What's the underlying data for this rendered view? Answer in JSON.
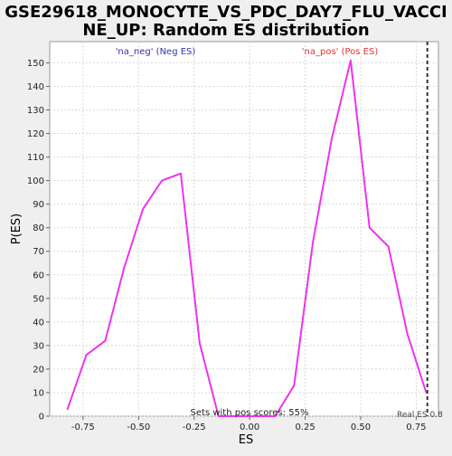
{
  "chart_data": {
    "type": "line",
    "title": "GSE29618_MONOCYTE_VS_PDC_DAY7_FLU_VACCINE_UP: Random ES distribution",
    "title_lines": [
      "GSE29618_MONOCYTE_VS_PDC_DAY7_FLU_VACCI",
      "NE_UP: Random ES distribution"
    ],
    "xlabel": "ES",
    "ylabel": "P(ES)",
    "xlim": [
      -0.9,
      0.85
    ],
    "ylim": [
      0,
      159
    ],
    "x_ticks": [
      -0.75,
      -0.5,
      -0.25,
      0.0,
      0.25,
      0.5,
      0.75
    ],
    "x_tick_labels": [
      "-0.75",
      "-0.50",
      "-0.25",
      "0.00",
      "0.25",
      "0.50",
      "0.75"
    ],
    "y_ticks": [
      0,
      10,
      20,
      30,
      40,
      50,
      60,
      70,
      80,
      90,
      100,
      110,
      120,
      130,
      140,
      150
    ],
    "grid": true,
    "series": [
      {
        "color": "#ee33ee",
        "x": [
          -0.82,
          -0.735,
          -0.65,
          -0.565,
          -0.48,
          -0.395,
          -0.31,
          -0.225,
          -0.14,
          -0.055,
          0.03,
          0.115,
          0.2,
          0.285,
          0.37,
          0.455,
          0.54,
          0.625,
          0.71,
          0.795
        ],
        "values": [
          3,
          26,
          32,
          63,
          88,
          100,
          103,
          31,
          0,
          0,
          0,
          0,
          13,
          74,
          118,
          151,
          80,
          72,
          35,
          10
        ]
      }
    ],
    "annotations": {
      "neg_label": "'na_neg' (Neg ES)",
      "neg_color": "#3333aa",
      "pos_label": "'na_pos' (Pos ES)",
      "pos_color": "#dd3333",
      "pos_scores_text": "Sets with pos scores: 55%",
      "real_es_label": "Real ES 0.8",
      "real_es_value": 0.8
    }
  }
}
